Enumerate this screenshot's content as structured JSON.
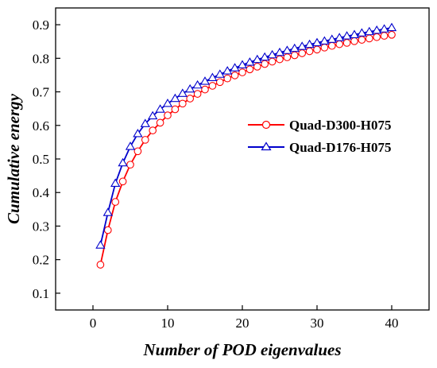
{
  "chart_data": {
    "type": "line",
    "xlabel": "Number of POD eigenvalues",
    "ylabel": "Cumulative energy",
    "xlim": [
      -5,
      45
    ],
    "ylim": [
      0.05,
      0.95
    ],
    "xticks": [
      0,
      10,
      20,
      30,
      40
    ],
    "yticks": [
      0.1,
      0.2,
      0.3,
      0.4,
      0.5,
      0.6,
      0.7,
      0.8,
      0.9
    ],
    "xtick_labels": [
      "0",
      "10",
      "20",
      "30",
      "40"
    ],
    "ytick_labels": [
      "0.1",
      "0.2",
      "0.3",
      "0.4",
      "0.5",
      "0.6",
      "0.7",
      "0.8",
      "0.9"
    ],
    "grid": false,
    "legend_position": "center-right",
    "series": [
      {
        "name": "Quad-D300-H075",
        "color": "#ff0000",
        "marker": "circle",
        "x": [
          1,
          2,
          3,
          4,
          5,
          6,
          7,
          8,
          9,
          10,
          11,
          12,
          13,
          14,
          15,
          16,
          17,
          18,
          19,
          20,
          21,
          22,
          23,
          24,
          25,
          26,
          27,
          28,
          29,
          30,
          31,
          32,
          33,
          34,
          35,
          36,
          37,
          38,
          39,
          40
        ],
        "y": [
          0.185,
          0.288,
          0.372,
          0.433,
          0.483,
          0.523,
          0.557,
          0.585,
          0.608,
          0.63,
          0.648,
          0.665,
          0.68,
          0.694,
          0.707,
          0.718,
          0.729,
          0.74,
          0.749,
          0.758,
          0.767,
          0.775,
          0.783,
          0.79,
          0.797,
          0.803,
          0.809,
          0.815,
          0.821,
          0.826,
          0.832,
          0.837,
          0.842,
          0.846,
          0.851,
          0.855,
          0.859,
          0.863,
          0.867,
          0.87
        ]
      },
      {
        "name": "Quad-D176-H075",
        "color": "#0000cc",
        "marker": "triangle",
        "x": [
          1,
          2,
          3,
          4,
          5,
          6,
          7,
          8,
          9,
          10,
          11,
          12,
          13,
          14,
          15,
          16,
          17,
          18,
          19,
          20,
          21,
          22,
          23,
          24,
          25,
          26,
          27,
          28,
          29,
          30,
          31,
          32,
          33,
          34,
          35,
          36,
          37,
          38,
          39,
          40
        ],
        "y": [
          0.243,
          0.34,
          0.427,
          0.488,
          0.537,
          0.575,
          0.605,
          0.628,
          0.648,
          0.665,
          0.68,
          0.695,
          0.708,
          0.72,
          0.731,
          0.742,
          0.752,
          0.762,
          0.771,
          0.78,
          0.788,
          0.796,
          0.803,
          0.81,
          0.817,
          0.823,
          0.829,
          0.835,
          0.841,
          0.846,
          0.851,
          0.856,
          0.861,
          0.866,
          0.87,
          0.875,
          0.879,
          0.883,
          0.887,
          0.891
        ]
      }
    ]
  }
}
